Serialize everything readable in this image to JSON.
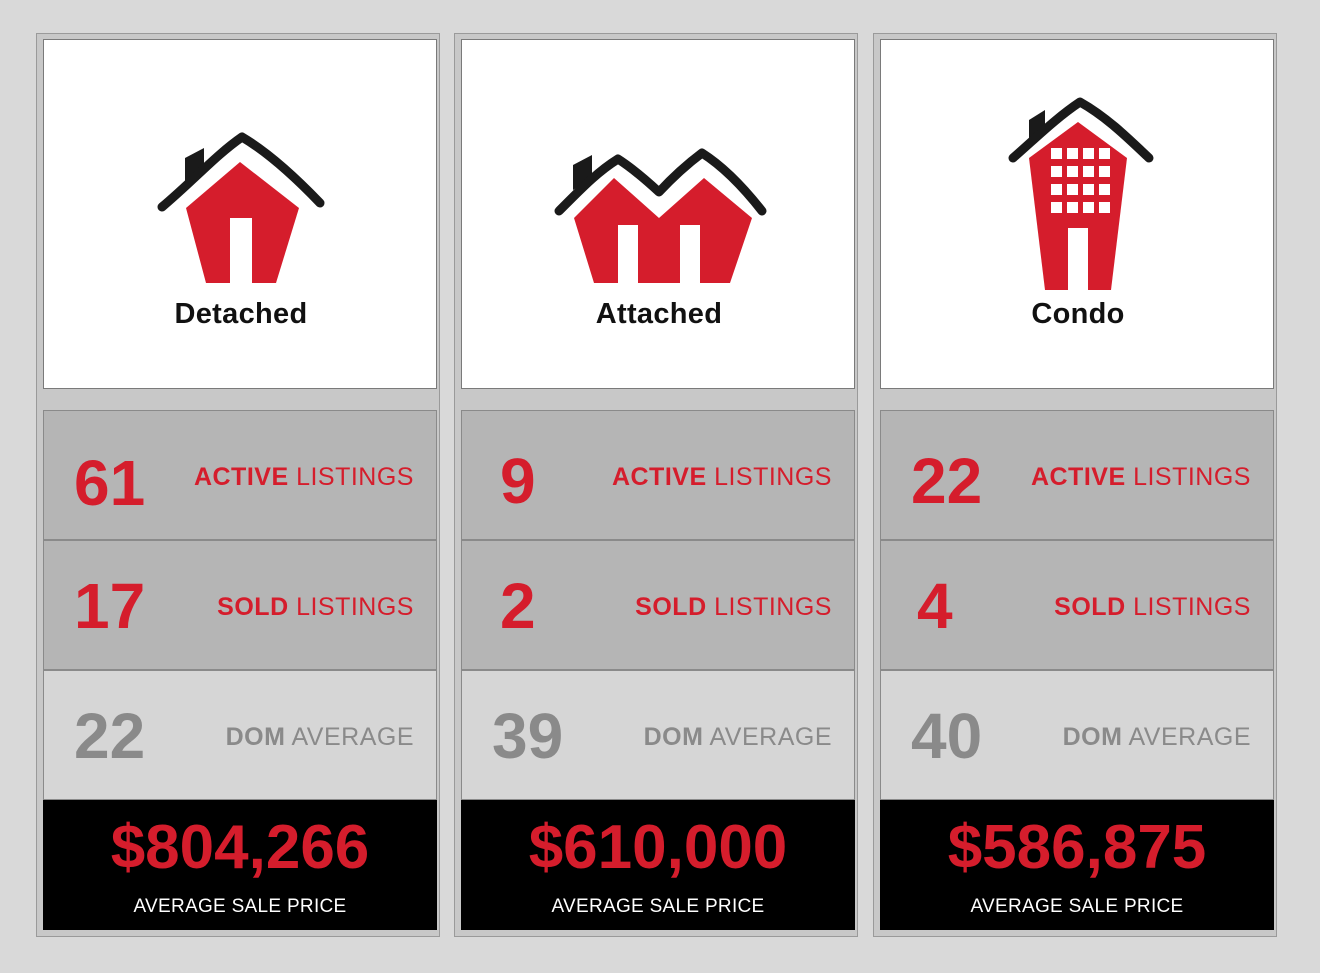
{
  "colors": {
    "accent_red": "#d51d2c",
    "roof_black": "#1a1a1a",
    "dom_grey": "#8a8a8a",
    "panel_grey": "#b5b5b5"
  },
  "columns": [
    {
      "title": "Detached",
      "icon": "detached-house-icon",
      "active_count": "61",
      "sold_count": "17",
      "dom_value": "22",
      "price": "$804,266"
    },
    {
      "title": "Attached",
      "icon": "attached-house-icon",
      "active_count": "9",
      "sold_count": "2",
      "dom_value": "39",
      "price": "$610,000"
    },
    {
      "title": "Condo",
      "icon": "condo-building-icon",
      "active_count": "22",
      "sold_count": "4",
      "dom_value": "40",
      "price": "$586,875"
    }
  ],
  "labels": {
    "active_strong": "ACTIVE",
    "active_rest": " LISTINGS",
    "sold_strong": "SOLD",
    "sold_rest": " LISTINGS",
    "dom_strong": "DOM",
    "dom_rest": " AVERAGE",
    "price_label": "AVERAGE SALE PRICE"
  }
}
